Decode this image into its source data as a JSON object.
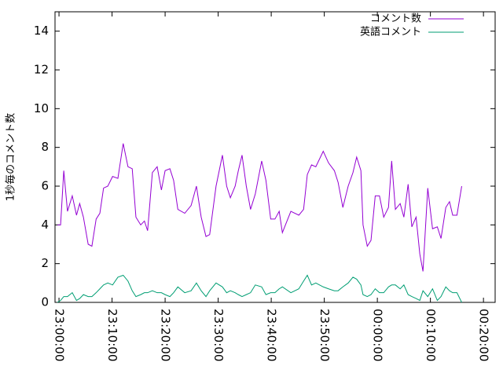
{
  "chart_data": {
    "type": "line",
    "ylabel": "1秒毎のコメント数",
    "x": [
      -0.3,
      0.3,
      0.9,
      1.6,
      2.5,
      3.3,
      3.9,
      4.6,
      5.5,
      6.2,
      7.0,
      7.7,
      8.4,
      9.2,
      10.1,
      11.1,
      12.1,
      13.0,
      13.8,
      14.5,
      15.4,
      16.1,
      16.7,
      17.6,
      18.5,
      19.3,
      20.0,
      20.9,
      21.6,
      22.4,
      23.7,
      24.9,
      25.9,
      26.8,
      27.7,
      28.4,
      29.6,
      30.8,
      31.6,
      32.3,
      33.2,
      33.8,
      34.5,
      35.3,
      36.1,
      37.0,
      38.2,
      39.0,
      39.9,
      40.7,
      41.5,
      42.1,
      43.7,
      45.2,
      46.1,
      46.8,
      47.6,
      48.4,
      49.8,
      50.8,
      51.9,
      52.6,
      53.5,
      54.5,
      55.4,
      56.1,
      56.9,
      57.3,
      58.1,
      58.8,
      59.6,
      60.4,
      61.2,
      62.1,
      62.7,
      63.4,
      64.3,
      65.0,
      65.8,
      66.5,
      67.3,
      68.0,
      68.6,
      69.5,
      70.4,
      71.3,
      72.0,
      72.9,
      73.6,
      74.2,
      75.0,
      75.9
    ],
    "series": [
      {
        "name": "コメント数",
        "color": "#9400d3",
        "values": [
          4.0,
          4.0,
          6.8,
          4.7,
          5.5,
          4.5,
          5.1,
          4.4,
          3.0,
          2.9,
          4.3,
          4.6,
          5.9,
          6.0,
          6.5,
          6.4,
          8.2,
          7.0,
          6.9,
          4.4,
          4.0,
          4.2,
          3.7,
          6.7,
          7.0,
          5.8,
          6.8,
          6.9,
          6.3,
          4.8,
          4.6,
          5.0,
          6.0,
          4.4,
          3.4,
          3.5,
          6.0,
          7.6,
          6.0,
          5.4,
          6.0,
          6.8,
          7.6,
          6.0,
          4.8,
          5.6,
          7.3,
          6.3,
          4.3,
          4.3,
          4.7,
          3.6,
          4.7,
          4.5,
          4.8,
          6.6,
          7.1,
          7.0,
          7.8,
          7.2,
          6.8,
          6.2,
          4.9,
          6.0,
          6.7,
          7.5,
          6.8,
          4.0,
          2.9,
          3.2,
          5.5,
          5.5,
          4.4,
          4.9,
          7.3,
          4.8,
          5.1,
          4.4,
          6.1,
          3.9,
          4.4,
          2.5,
          1.6,
          5.9,
          3.8,
          3.9,
          3.3,
          4.9,
          5.2,
          4.5,
          4.5,
          6.0
        ]
      },
      {
        "name": "英語コメント",
        "color": "#009e73",
        "values": [
          0.0,
          0.1,
          0.3,
          0.3,
          0.5,
          0.1,
          0.2,
          0.4,
          0.3,
          0.3,
          0.5,
          0.7,
          0.9,
          1.0,
          0.9,
          1.3,
          1.4,
          1.1,
          0.6,
          0.3,
          0.4,
          0.5,
          0.5,
          0.6,
          0.5,
          0.5,
          0.4,
          0.3,
          0.5,
          0.8,
          0.5,
          0.6,
          1.0,
          0.6,
          0.3,
          0.6,
          1.0,
          0.8,
          0.5,
          0.6,
          0.5,
          0.4,
          0.3,
          0.4,
          0.5,
          0.9,
          0.8,
          0.4,
          0.5,
          0.5,
          0.7,
          0.8,
          0.5,
          0.7,
          1.1,
          1.4,
          0.9,
          1.0,
          0.8,
          0.7,
          0.6,
          0.6,
          0.8,
          1.0,
          1.3,
          1.2,
          0.9,
          0.4,
          0.3,
          0.4,
          0.7,
          0.5,
          0.5,
          0.8,
          0.9,
          0.9,
          0.7,
          0.9,
          0.4,
          0.3,
          0.2,
          0.1,
          0.6,
          0.3,
          0.7,
          0.1,
          0.3,
          0.8,
          0.6,
          0.5,
          0.5,
          0.0
        ]
      }
    ],
    "xlim": [
      -0.75,
      82.2
    ],
    "xticks": [
      {
        "value": 0,
        "label": "23:00:00"
      },
      {
        "value": 10,
        "label": "23:10:00"
      },
      {
        "value": 20,
        "label": "23:20:00"
      },
      {
        "value": 30,
        "label": "23:30:00"
      },
      {
        "value": 40,
        "label": "23:40:00"
      },
      {
        "value": 50,
        "label": "23:50:00"
      },
      {
        "value": 60,
        "label": "00:00:00"
      },
      {
        "value": 70,
        "label": "00:10:00"
      },
      {
        "value": 80,
        "label": "00:20:00"
      }
    ],
    "ylim": [
      0,
      15
    ],
    "yticks": [
      0,
      2,
      4,
      6,
      8,
      10,
      12,
      14
    ],
    "legend": "top-right"
  }
}
